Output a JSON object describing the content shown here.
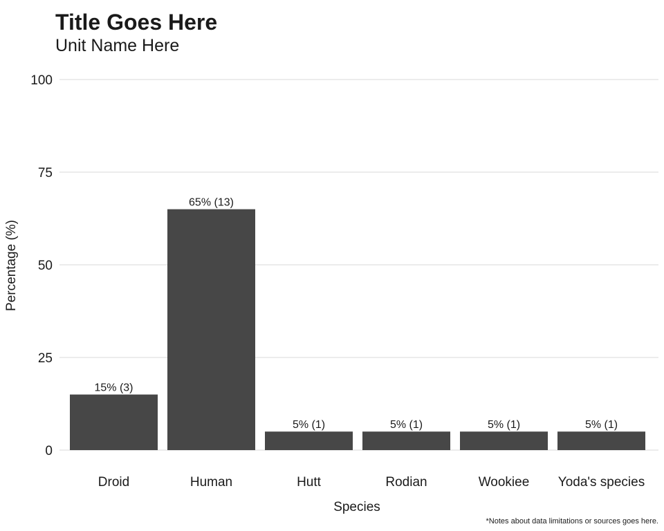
{
  "chart_data": {
    "type": "bar",
    "title": "Title Goes Here",
    "subtitle": "Unit Name Here",
    "caption": "*Notes about data limitations or sources goes here.",
    "xlabel": "Species",
    "ylabel": "Percentage (%)",
    "categories": [
      "Droid",
      "Human",
      "Hutt",
      "Rodian",
      "Wookiee",
      "Yoda's species"
    ],
    "values": [
      15,
      65,
      5,
      5,
      5,
      5
    ],
    "data_labels": [
      "15% (3)",
      "65% (13)",
      "5% (1)",
      "5% (1)",
      "5% (1)",
      "5% (1)"
    ],
    "ylim": [
      0,
      100
    ],
    "yticks": [
      0,
      25,
      50,
      75,
      100
    ],
    "bar_color": "#474747",
    "grid": true,
    "legend": "none"
  }
}
